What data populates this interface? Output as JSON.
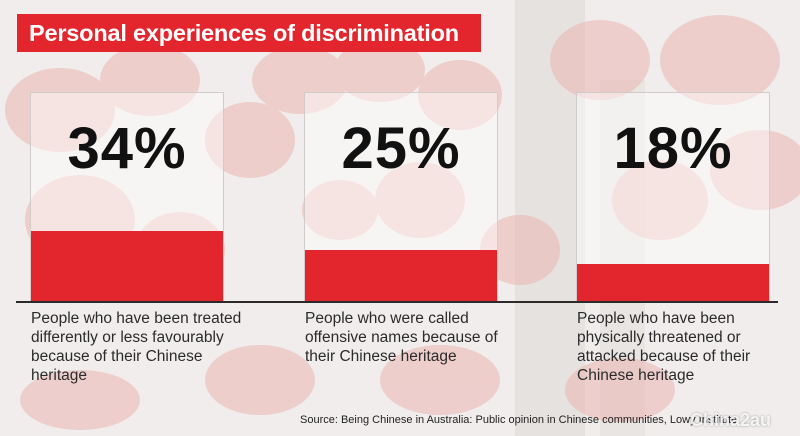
{
  "chart_data": {
    "type": "bar",
    "title": "Personal experiences of discrimination",
    "ylim": [
      0,
      100
    ],
    "categories": [
      "People who have been treated differently or less favourably because of their Chinese heritage",
      "People who were called offensive names because of their Chinese heritage",
      "People who have been physically threatened or attacked because of their Chinese heritage"
    ],
    "values": [
      34,
      25,
      18
    ],
    "value_labels": [
      "34%",
      "25%",
      "18%"
    ],
    "source": "Source: Being Chinese in Australia: Public opinion in Chinese communities, Lowy Institute"
  },
  "colors": {
    "accent": "#e3262d",
    "text": "#111111"
  },
  "watermark": "Chinа2au"
}
